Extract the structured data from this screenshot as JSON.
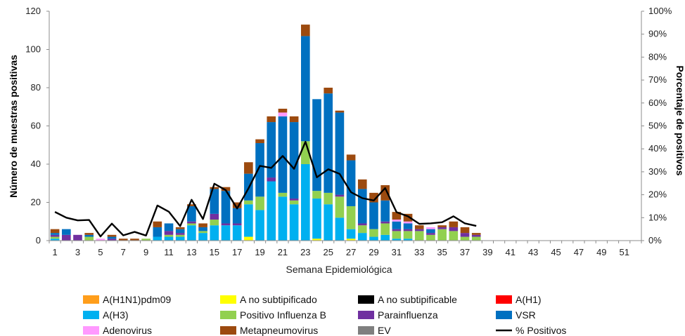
{
  "chart_data": {
    "type": "bar",
    "stacked": true,
    "xlabel": "Semana Epidemiológica",
    "ylabel": "Número de muestras positivas",
    "y2label": "Porcentaje de positivos",
    "ylim": [
      0,
      120
    ],
    "yticks": [
      0,
      20,
      40,
      60,
      80,
      100,
      120
    ],
    "y2lim": [
      0,
      100
    ],
    "y2ticks": [
      "0%",
      "10%",
      "20%",
      "30%",
      "40%",
      "50%",
      "60%",
      "70%",
      "80%",
      "90%",
      "100%"
    ],
    "grid": false,
    "legend_position": "bottom",
    "weeks": [
      1,
      2,
      3,
      4,
      5,
      6,
      7,
      8,
      9,
      10,
      11,
      12,
      13,
      14,
      15,
      16,
      17,
      18,
      19,
      20,
      21,
      22,
      23,
      24,
      25,
      26,
      27,
      28,
      29,
      30,
      31,
      32,
      33,
      34,
      35,
      36,
      37,
      38,
      39,
      40,
      41,
      42,
      43,
      44,
      45,
      46,
      47,
      48,
      49,
      50,
      51,
      52
    ],
    "xtick_labels": [
      "1",
      "3",
      "5",
      "7",
      "9",
      "11",
      "13",
      "15",
      "17",
      "19",
      "21",
      "23",
      "25",
      "27",
      "29",
      "31",
      "33",
      "35",
      "37",
      "39",
      "41",
      "43",
      "45",
      "47",
      "49",
      "51"
    ],
    "series": [
      {
        "name": "A(H1N1)pdm09",
        "color": "#ff9e1b",
        "values": [
          0,
          0,
          0,
          0,
          0,
          0,
          0,
          0,
          0,
          0,
          0,
          0,
          0,
          0,
          0,
          0,
          0,
          0,
          0,
          0,
          0,
          0,
          0,
          0,
          0,
          0,
          0,
          0,
          0,
          0,
          0,
          0,
          0,
          0,
          0,
          0,
          0,
          0
        ]
      },
      {
        "name": "A no subtipificado",
        "color": "#ffff00",
        "values": [
          0,
          0,
          0,
          0,
          0,
          0,
          0,
          0,
          0,
          0,
          0,
          0,
          0,
          0,
          0,
          0,
          0,
          2,
          0,
          0,
          0,
          0,
          0,
          1,
          0,
          0,
          1,
          0,
          0,
          0,
          0,
          0,
          0,
          0,
          0,
          0,
          0,
          0
        ]
      },
      {
        "name": "A no subtipificable",
        "color": "#000000",
        "values": [
          0,
          0,
          0,
          0,
          0,
          0,
          0,
          0,
          0,
          0,
          0,
          0,
          0,
          0,
          0,
          0,
          0,
          0,
          0,
          0,
          0,
          0,
          0,
          0,
          0,
          0,
          0,
          0,
          0,
          0,
          0,
          0,
          0,
          0,
          0,
          0,
          0,
          0
        ]
      },
      {
        "name": "A(H1)",
        "color": "#ff0000",
        "values": [
          0,
          0,
          0,
          0,
          0,
          0,
          0,
          0,
          0,
          0,
          0,
          0,
          0,
          0,
          0,
          0,
          0,
          0,
          0,
          0,
          0,
          0,
          0,
          0,
          0,
          0,
          0,
          0,
          0,
          0,
          0,
          0,
          0,
          0,
          0,
          0,
          0,
          0
        ]
      },
      {
        "name": "A(H3)",
        "color": "#00b0f0",
        "values": [
          1,
          0,
          0,
          0,
          0,
          0,
          0,
          0,
          0,
          2,
          2,
          2,
          8,
          4,
          8,
          8,
          8,
          17,
          16,
          31,
          23,
          19,
          40,
          21,
          19,
          12,
          5,
          4,
          2,
          3,
          1,
          1,
          0,
          0,
          0,
          0,
          0,
          0
        ]
      },
      {
        "name": "Positivo Influenza  B",
        "color": "#92d050",
        "values": [
          1,
          0,
          0,
          2,
          0,
          0,
          0,
          0,
          1,
          0,
          1,
          1,
          1,
          1,
          3,
          0,
          0,
          2,
          7,
          0,
          2,
          2,
          12,
          4,
          6,
          11,
          12,
          4,
          4,
          6,
          4,
          4,
          5,
          3,
          6,
          5,
          2,
          2
        ]
      },
      {
        "name": "Parainfluenza",
        "color": "#7030a0",
        "values": [
          1,
          3,
          3,
          0,
          0,
          1,
          0,
          0,
          0,
          0,
          2,
          1,
          1,
          0,
          3,
          1,
          1,
          0,
          0,
          2,
          0,
          1,
          0,
          0,
          0,
          1,
          0,
          1,
          0,
          1,
          1,
          1,
          1,
          1,
          1,
          2,
          2,
          1
        ]
      },
      {
        "name": "VSR",
        "color": "#0070c0",
        "values": [
          1,
          3,
          0,
          1,
          0,
          1,
          0,
          0,
          0,
          5,
          4,
          2,
          8,
          2,
          13,
          17,
          8,
          14,
          28,
          29,
          40,
          40,
          55,
          48,
          52,
          43,
          24,
          18,
          14,
          11,
          4,
          3,
          0,
          2,
          0,
          0,
          0,
          0
        ]
      },
      {
        "name": "Adenovirus",
        "color": "#ff99ff",
        "values": [
          0,
          0,
          0,
          0,
          1,
          0,
          0,
          0,
          0,
          0,
          0,
          0,
          0,
          0,
          0,
          0,
          0,
          0,
          0,
          0,
          2,
          0,
          0,
          0,
          0,
          0,
          0,
          0,
          0,
          0,
          1,
          1,
          0,
          1,
          0,
          0,
          0,
          0
        ]
      },
      {
        "name": "Metapneumovirus",
        "color": "#9c4a0f",
        "values": [
          2,
          0,
          0,
          1,
          0,
          1,
          1,
          1,
          0,
          3,
          0,
          1,
          1,
          2,
          1,
          2,
          3,
          6,
          2,
          3,
          2,
          3,
          6,
          0,
          3,
          1,
          3,
          5,
          5,
          8,
          4,
          4,
          2,
          0,
          1,
          3,
          3,
          1
        ]
      },
      {
        "name": "EV",
        "color": "#7f7f7f",
        "values": [
          0,
          0,
          0,
          0,
          0,
          0,
          0,
          0,
          0,
          0,
          0,
          0,
          0,
          0,
          0,
          0,
          0,
          0,
          0,
          0,
          0,
          0,
          0,
          0,
          0,
          0,
          0,
          0,
          0,
          0,
          0,
          0,
          0,
          0,
          0,
          0,
          0,
          0
        ]
      }
    ],
    "line": {
      "name": "% Positivos",
      "color": "#000000",
      "values": [
        12.5,
        10,
        8.8,
        9,
        1.8,
        7.4,
        2.3,
        3.8,
        2.2,
        15.3,
        12.6,
        6.3,
        17.8,
        9.4,
        24.8,
        22,
        14,
        22.8,
        32.6,
        31.7,
        36.9,
        31.3,
        43.1,
        27.6,
        31.1,
        29.1,
        21.1,
        18.5,
        17.5,
        22.9,
        12.4,
        10.6,
        7.3,
        7.5,
        8,
        10.6,
        7.5,
        6.4
      ]
    }
  }
}
